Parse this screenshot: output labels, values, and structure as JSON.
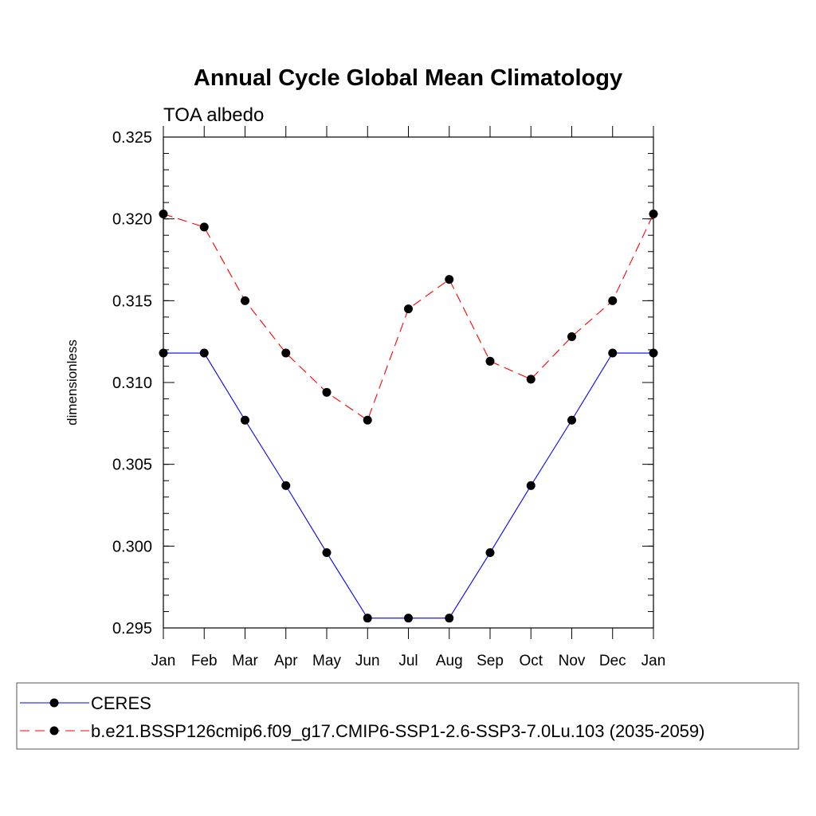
{
  "chart_data": {
    "type": "line",
    "title": "Annual Cycle Global Mean Climatology",
    "subtitle": "TOA albedo",
    "xlabel": "",
    "ylabel": "dimensionless",
    "categories": [
      "Jan",
      "Feb",
      "Mar",
      "Apr",
      "May",
      "Jun",
      "Jul",
      "Aug",
      "Sep",
      "Oct",
      "Nov",
      "Dec",
      "Jan"
    ],
    "ylim": [
      0.295,
      0.325
    ],
    "yticks": [
      "0.295",
      "0.300",
      "0.305",
      "0.310",
      "0.315",
      "0.320",
      "0.325"
    ],
    "grid": false,
    "legend_position": "bottom",
    "series": [
      {
        "name": "CERES",
        "color": "#0000ff",
        "line_style": "solid",
        "marker": "filled-circle",
        "values": [
          0.3118,
          0.3118,
          0.3077,
          0.3037,
          0.2996,
          0.2956,
          0.2956,
          0.2956,
          0.2996,
          0.3037,
          0.3077,
          0.3118,
          0.3118
        ]
      },
      {
        "name": "b.e21.BSSP126cmip6.f09_g17.CMIP6-SSP1-2.6-SSP3-7.0Lu.103 (2035-2059)",
        "color": "#ff0000",
        "line_style": "dashed",
        "marker": "filled-circle",
        "values": [
          0.3203,
          0.3195,
          0.315,
          0.3118,
          0.3094,
          0.3077,
          0.3145,
          0.3163,
          0.3113,
          0.3102,
          0.3128,
          0.315,
          0.3203
        ]
      }
    ]
  }
}
